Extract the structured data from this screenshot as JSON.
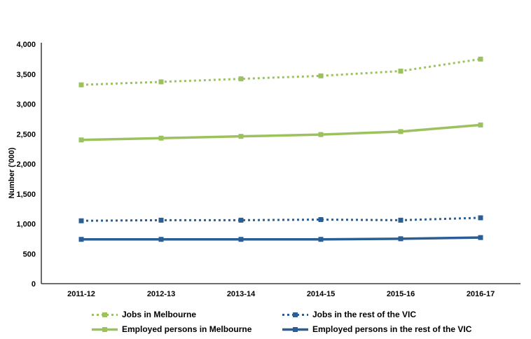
{
  "page": {
    "background_color": "#ffffff"
  },
  "chart_data": {
    "type": "line",
    "title": "",
    "xlabel": "",
    "ylabel": "Number ('000)",
    "grid": false,
    "legend_position": "bottom",
    "categories": [
      "2011-12",
      "2012-13",
      "2013-14",
      "2014-15",
      "2015-16",
      "2016-17"
    ],
    "ylim": [
      0,
      4000
    ],
    "y_tick_values": [
      0,
      500,
      1000,
      1500,
      2000,
      2500,
      3000,
      3500,
      4000
    ],
    "y_tick_labels": [
      "0",
      "500",
      "1,000",
      "1,500",
      "2,000",
      "2,500",
      "3,000",
      "3,500",
      "4,000"
    ],
    "colors": {
      "melbourne_green": "#9CC25E",
      "vic_blue": "#2B5F94",
      "axis_black": "#1a1a1a"
    },
    "series": [
      {
        "name": "Jobs in Melbourne",
        "color": "#9CC25E",
        "style": "dotted",
        "values": [
          3320,
          3370,
          3420,
          3470,
          3550,
          3750
        ]
      },
      {
        "name": "Jobs in the rest of the VIC",
        "color": "#2B5F94",
        "style": "dotted",
        "values": [
          1050,
          1060,
          1060,
          1070,
          1060,
          1100
        ]
      },
      {
        "name": "Employed persons in Melbourne",
        "color": "#9CC25E",
        "style": "solid",
        "values": [
          2400,
          2430,
          2460,
          2490,
          2540,
          2650
        ]
      },
      {
        "name": "Employed persons in the rest of the VIC",
        "color": "#2B5F94",
        "style": "solid",
        "values": [
          740,
          740,
          740,
          740,
          750,
          770
        ]
      }
    ]
  }
}
